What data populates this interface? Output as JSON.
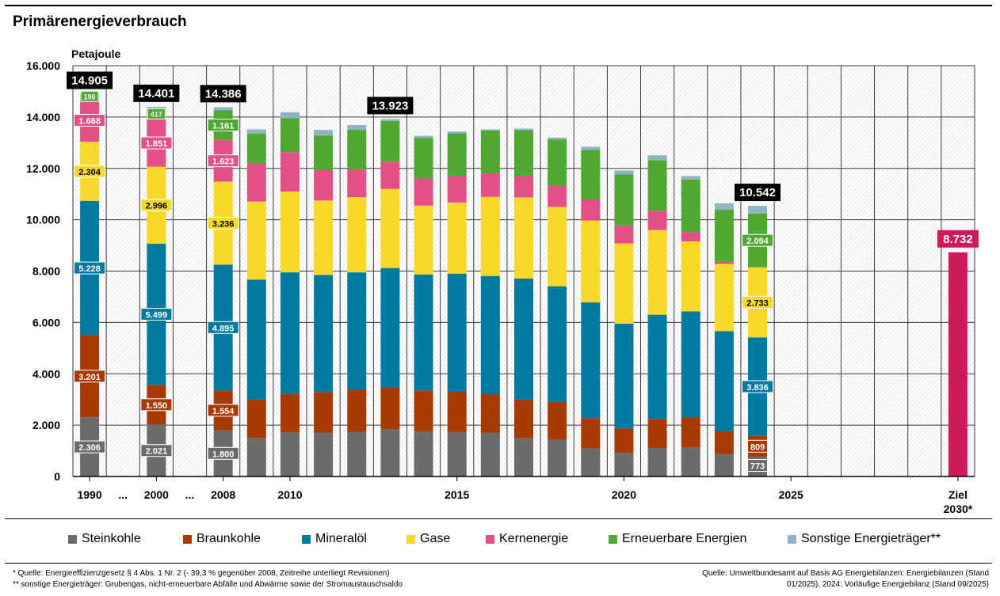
{
  "header": {
    "title": "Primärenergieverbrauch",
    "unit": "Petajoule"
  },
  "footnotes": {
    "note1": "* Quelle: Energieeffizienzgesetz § 4 Abs. 1 Nr. 2 (- 39,3 % gegenüber 2008, Zeitreihe unterliegt Revisionen)",
    "note2": "** sonstige Energieträger: Grubengas, nicht-erneuerbare Abfälle und Abwärme sowie der Stromaustauschsaldo",
    "source1": "Quelle: Umweltbundesamt auf Basis AG Energiebilanzen: Energiebilanzen (Stand",
    "source2": "01/2025), 2024: Vorläufige Energiebilanz (Stand 09/2025)"
  },
  "chart_data": {
    "type": "bar",
    "stacked": true,
    "title": "Primärenergieverbrauch",
    "ylabel": "Petajoule",
    "ylim": [
      0,
      16000
    ],
    "yticks": [
      0,
      2000,
      4000,
      6000,
      8000,
      10000,
      12000,
      14000,
      16000
    ],
    "ytick_labels": [
      "0",
      "2.000",
      "4.000",
      "6.000",
      "8.000",
      "10.000",
      "12.000",
      "14.000",
      "16.000"
    ],
    "grid": true,
    "x_labels": [
      {
        "text": "1990",
        "slot": 0
      },
      {
        "text": "...",
        "slot": 1
      },
      {
        "text": "2000",
        "slot": 2
      },
      {
        "text": "...",
        "slot": 3
      },
      {
        "text": "2008",
        "slot": 4
      },
      {
        "text": "2010",
        "slot": 6
      },
      {
        "text": "2015",
        "slot": 11
      },
      {
        "text": "2020",
        "slot": 16
      },
      {
        "text": "2025",
        "slot": 21
      },
      {
        "text": "Ziel",
        "slot": 26
      },
      {
        "text": "2030*",
        "slot": 26
      }
    ],
    "categories": [
      "1990",
      "2000",
      "2008",
      "2009",
      "2010",
      "2011",
      "2012",
      "2013",
      "2014",
      "2015",
      "2016",
      "2017",
      "2018",
      "2019",
      "2020",
      "2021",
      "2022",
      "2023",
      "2024"
    ],
    "slots": [
      0,
      2,
      4,
      5,
      6,
      7,
      8,
      9,
      10,
      11,
      12,
      13,
      14,
      15,
      16,
      17,
      18,
      19,
      20
    ],
    "series": [
      {
        "name": "Steinkohle",
        "color": "#6b6b6b",
        "values": [
          2306,
          2021,
          1800,
          1500,
          1720,
          1710,
          1740,
          1850,
          1760,
          1730,
          1700,
          1500,
          1430,
          1090,
          920,
          1110,
          1130,
          870,
          773
        ]
      },
      {
        "name": "Braunkohle",
        "color": "#a63a00",
        "values": [
          3201,
          1550,
          1554,
          1510,
          1510,
          1580,
          1650,
          1620,
          1590,
          1570,
          1520,
          1500,
          1480,
          1180,
          950,
          1130,
          1180,
          900,
          809
        ]
      },
      {
        "name": "Mineralöl",
        "color": "#007aa0",
        "values": [
          5228,
          5499,
          4895,
          4660,
          4720,
          4560,
          4560,
          4650,
          4520,
          4600,
          4590,
          4710,
          4500,
          4510,
          4080,
          4060,
          4120,
          3890,
          3836
        ]
      },
      {
        "name": "Gase",
        "color": "#f8d92a",
        "values": [
          2304,
          2996,
          3236,
          3040,
          3150,
          2900,
          2930,
          3080,
          2680,
          2770,
          3080,
          3160,
          3090,
          3190,
          3130,
          3300,
          2730,
          2620,
          2733
        ]
      },
      {
        "name": "Kernenergie",
        "color": "#e54f87",
        "values": [
          1668,
          1851,
          1623,
          1480,
          1530,
          1180,
          1080,
          1060,
          1060,
          1030,
          920,
          830,
          830,
          820,
          700,
          750,
          360,
          80,
          0
        ]
      },
      {
        "name": "Erneuerbare Energien",
        "color": "#4fa832",
        "values": [
          196,
          417,
          1161,
          1170,
          1330,
          1350,
          1540,
          1590,
          1570,
          1670,
          1670,
          1790,
          1800,
          1930,
          1990,
          1970,
          2050,
          2040,
          2094
        ]
      },
      {
        "name": "Sonstige Energieträger**",
        "color": "#8fb5c5",
        "values": [
          2,
          67,
          117,
          160,
          230,
          220,
          190,
          73,
          90,
          70,
          40,
          60,
          70,
          120,
          150,
          190,
          130,
          240,
          297
        ]
      }
    ],
    "totals": [
      {
        "category": "1990",
        "text": "14.905"
      },
      {
        "category": "2000",
        "text": "14.401"
      },
      {
        "category": "2008",
        "text": "14.386"
      },
      {
        "category": "2013",
        "text": "13.923"
      },
      {
        "category": "2024",
        "text": "10.542"
      }
    ],
    "segment_labels": {
      "1990": [
        "2.306",
        "3.201",
        "5.228",
        "2.304",
        "1.668",
        "196"
      ],
      "2000": [
        "2.021",
        "1.550",
        "5.499",
        "2.996",
        "1.851",
        "417"
      ],
      "2008": [
        "1.800",
        "1.554",
        "4.895",
        "3.236",
        "1.623",
        "1.161"
      ],
      "2024": [
        "773",
        "809",
        "3.836",
        "2.733",
        "",
        "2.094"
      ]
    },
    "target": {
      "label": "Ziel 2030*",
      "value": 8732,
      "text": "8.732",
      "color": "#d0185d",
      "slot": 26
    }
  }
}
